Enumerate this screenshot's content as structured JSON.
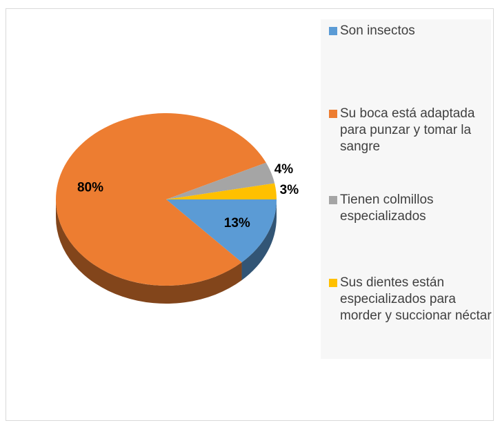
{
  "chart_data": {
    "type": "pie",
    "categories": [
      "Son insectos",
      "Su boca está adaptada para punzar y tomar la sangre",
      "Tienen colmillos especializados",
      "Sus dientes están especializados para morder y succionar néctar"
    ],
    "values": [
      13,
      80,
      4,
      3
    ],
    "value_labels": [
      "13%",
      "80%",
      "4%",
      "3%"
    ],
    "colors": [
      "#5b9bd5",
      "#ed7d31",
      "#a5a5a5",
      "#ffc000"
    ],
    "legend": "right"
  }
}
